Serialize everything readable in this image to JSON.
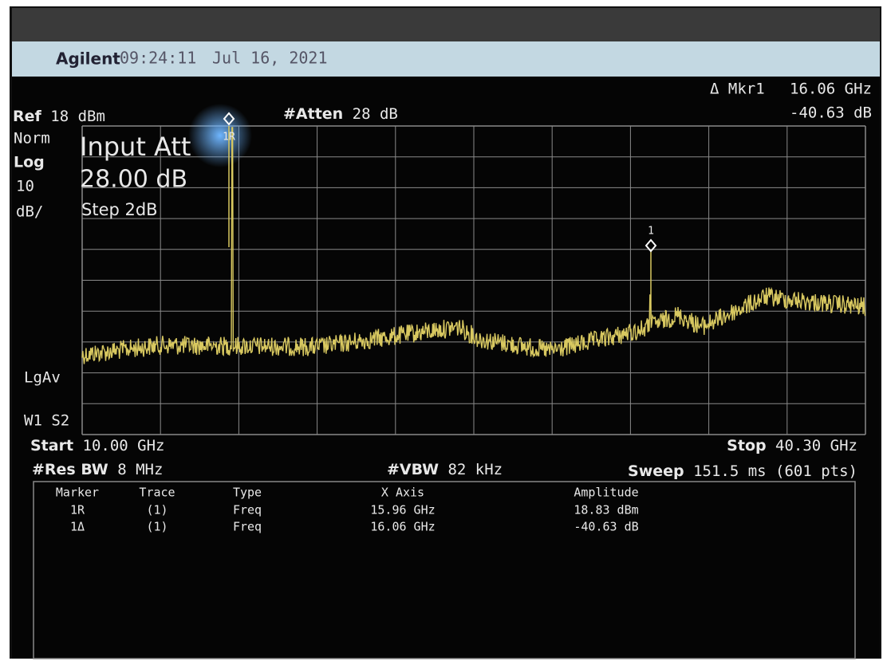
{
  "header": {
    "brand": "Agilent",
    "time": "09:24:11",
    "date": "Jul 16, 2021"
  },
  "marker_readout": {
    "label": "Δ Mkr1",
    "frequency": "16.06 GHz",
    "amplitude": "-40.63 dB"
  },
  "left_panel": {
    "ref_label": "Ref",
    "ref_value": "18 dBm",
    "norm": "Norm",
    "scale_type": "Log",
    "scale_value": "10",
    "scale_unit": "dB/",
    "detector": "LgAv",
    "trace_mode": "W1  S2"
  },
  "atten": {
    "label": "#Atten",
    "value": "28 dB"
  },
  "input_att": {
    "title": "Input Att",
    "value": "28.00 dB",
    "step": "Step 2dB"
  },
  "markers": {
    "reference": "1R",
    "delta": "1"
  },
  "footer": {
    "start_label": "Start",
    "start_value": "10.00 GHz",
    "stop_label": "Stop",
    "stop_value": "40.30 GHz",
    "res_bw_label": "#Res BW",
    "res_bw_value": "8 MHz",
    "vbw_label": "#VBW",
    "vbw_value": "82 kHz",
    "sweep_label": "Sweep",
    "sweep_value": "151.5 ms (601 pts)"
  },
  "table": {
    "columns": [
      "Marker",
      "Trace",
      "Type",
      "X Axis",
      "Amplitude"
    ],
    "rows": [
      [
        "1R",
        "(1)",
        "Freq",
        "15.96 GHz",
        "18.83 dBm"
      ],
      [
        "1Δ",
        "(1)",
        "Freq",
        "16.06 GHz",
        "-40.63 dB"
      ]
    ]
  }
}
